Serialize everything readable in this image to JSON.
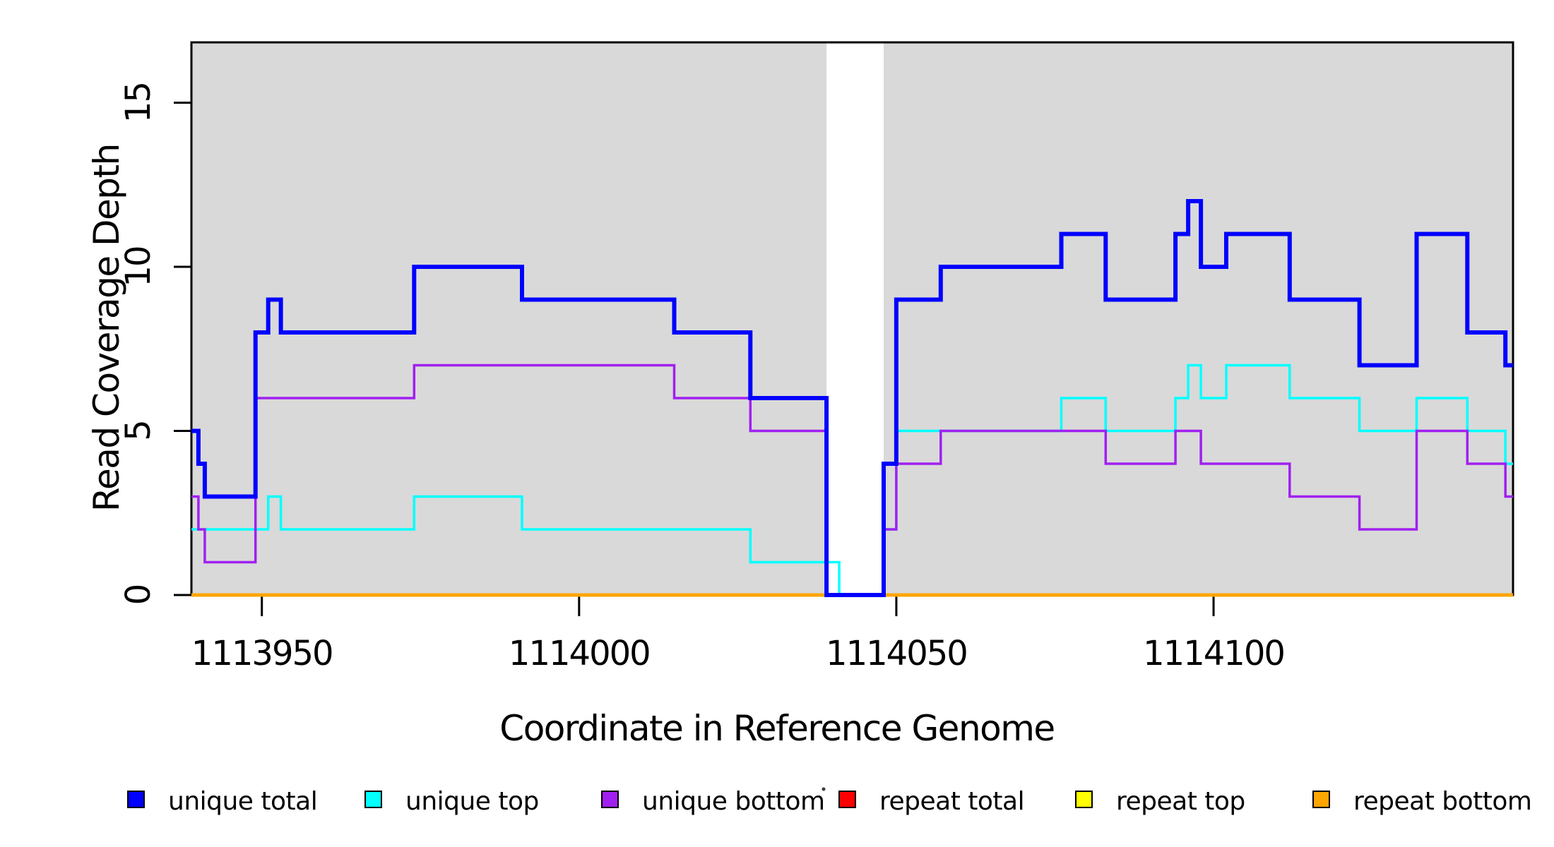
{
  "figure": {
    "kind": "R step plot of sequencing read coverage",
    "background": "#ffffff",
    "plot_background_shading": "#D9D9D9"
  },
  "chart_data": {
    "type": "line",
    "subtype": "step",
    "title": "",
    "xlabel": "Coordinate in Reference Genome",
    "ylabel": "Read Coverage Depth",
    "x_domain": [
      1113938.9,
      1114147.2
    ],
    "y_domain": [
      0,
      16.84
    ],
    "grid": false,
    "x_ticks": [
      {
        "value": 1113950,
        "label": "1113950"
      },
      {
        "value": 1114000,
        "label": "1114000"
      },
      {
        "value": 1114050,
        "label": "1114050"
      },
      {
        "value": 1114100,
        "label": "1114100"
      }
    ],
    "y_ticks": [
      {
        "value": 0,
        "label": "0"
      },
      {
        "value": 5,
        "label": "5"
      },
      {
        "value": 10,
        "label": "10"
      },
      {
        "value": 15,
        "label": "15"
      }
    ],
    "shaded_regions": [
      {
        "from": 1113938.9,
        "to": 1114039,
        "color": "#D9D9D9"
      },
      {
        "from": 1114048,
        "to": 1114147.2,
        "color": "#D9D9D9"
      }
    ],
    "gap_region": {
      "from": 1114039,
      "to": 1114048,
      "color": "#ffffff"
    },
    "series": [
      {
        "name": "repeat total",
        "color": "#FF0000",
        "stroke_width": 3.5,
        "segments": [
          [
            1113938.9,
            1114147.2,
            0
          ]
        ]
      },
      {
        "name": "repeat top",
        "color": "#FFFF00",
        "stroke_width": 3.5,
        "segments": [
          [
            1113938.9,
            1114147.2,
            0
          ]
        ]
      },
      {
        "name": "repeat bottom",
        "color": "#FFA500",
        "stroke_width": 5,
        "segments": [
          [
            1113938.9,
            1114147.2,
            0
          ]
        ]
      },
      {
        "name": "unique top",
        "color": "#00FFFF",
        "stroke_width": 3.5,
        "segments": [
          [
            1113938.9,
            1113951,
            2
          ],
          [
            1113951,
            1113953,
            3
          ],
          [
            1113953,
            1113974,
            2
          ],
          [
            1113974,
            1113991,
            3
          ],
          [
            1113991,
            1114027,
            2
          ],
          [
            1114027,
            1114041,
            1
          ],
          [
            1114041,
            1114048,
            0
          ],
          [
            1114048,
            1114050,
            2
          ],
          [
            1114050,
            1114076,
            5
          ],
          [
            1114076,
            1114083,
            6
          ],
          [
            1114083,
            1114094,
            5
          ],
          [
            1114094,
            1114096,
            6
          ],
          [
            1114096,
            1114098,
            7
          ],
          [
            1114098,
            1114102,
            6
          ],
          [
            1114102,
            1114112,
            7
          ],
          [
            1114112,
            1114123,
            6
          ],
          [
            1114123,
            1114132,
            5
          ],
          [
            1114132,
            1114140,
            6
          ],
          [
            1114140,
            1114146,
            5
          ],
          [
            1114146,
            1114147.2,
            4
          ]
        ]
      },
      {
        "name": "unique bottom",
        "color": "#A020F0",
        "stroke_width": 3.5,
        "segments": [
          [
            1113938.9,
            1113940,
            3
          ],
          [
            1113940,
            1113941,
            2
          ],
          [
            1113941,
            1113949,
            1
          ],
          [
            1113949,
            1113974,
            6
          ],
          [
            1113974,
            1114015,
            7
          ],
          [
            1114015,
            1114027,
            6
          ],
          [
            1114027,
            1114039,
            5
          ],
          [
            1114039,
            1114048,
            0
          ],
          [
            1114048,
            1114050,
            2
          ],
          [
            1114050,
            1114057,
            4
          ],
          [
            1114057,
            1114083,
            5
          ],
          [
            1114083,
            1114094,
            4
          ],
          [
            1114094,
            1114098,
            5
          ],
          [
            1114098,
            1114112,
            4
          ],
          [
            1114112,
            1114123,
            3
          ],
          [
            1114123,
            1114132,
            2
          ],
          [
            1114132,
            1114140,
            5
          ],
          [
            1114140,
            1114146,
            4
          ],
          [
            1114146,
            1114147.2,
            3
          ]
        ]
      },
      {
        "name": "unique total",
        "color": "#0000FF",
        "stroke_width": 6,
        "segments": [
          [
            1113938.9,
            1113940,
            5
          ],
          [
            1113940,
            1113941,
            4
          ],
          [
            1113941,
            1113949,
            3
          ],
          [
            1113949,
            1113951,
            8
          ],
          [
            1113951,
            1113953,
            9
          ],
          [
            1113953,
            1113974,
            8
          ],
          [
            1113974,
            1113991,
            10
          ],
          [
            1113991,
            1114015,
            9
          ],
          [
            1114015,
            1114027,
            8
          ],
          [
            1114027,
            1114039,
            6
          ],
          [
            1114039,
            1114048,
            0
          ],
          [
            1114048,
            1114050,
            4
          ],
          [
            1114050,
            1114057,
            9
          ],
          [
            1114057,
            1114076,
            10
          ],
          [
            1114076,
            1114083,
            11
          ],
          [
            1114083,
            1114094,
            9
          ],
          [
            1114094,
            1114096,
            11
          ],
          [
            1114096,
            1114098,
            12
          ],
          [
            1114098,
            1114102,
            10
          ],
          [
            1114102,
            1114112,
            11
          ],
          [
            1114112,
            1114123,
            9
          ],
          [
            1114123,
            1114132,
            7
          ],
          [
            1114132,
            1114140,
            11
          ],
          [
            1114140,
            1114146,
            8
          ],
          [
            1114146,
            1114147.2,
            7
          ]
        ]
      }
    ],
    "legend": {
      "position": "bottom",
      "entries": [
        {
          "label": "unique total",
          "color": "#0000FF"
        },
        {
          "label": "unique top",
          "color": "#00FFFF"
        },
        {
          "label": "unique bottom",
          "color": "#A020F0"
        },
        {
          "label": "repeat total",
          "color": "#FF0000"
        },
        {
          "label": "repeat top",
          "color": "#FFFF00"
        },
        {
          "label": "repeat bottom",
          "color": "#FFA500"
        }
      ]
    }
  }
}
